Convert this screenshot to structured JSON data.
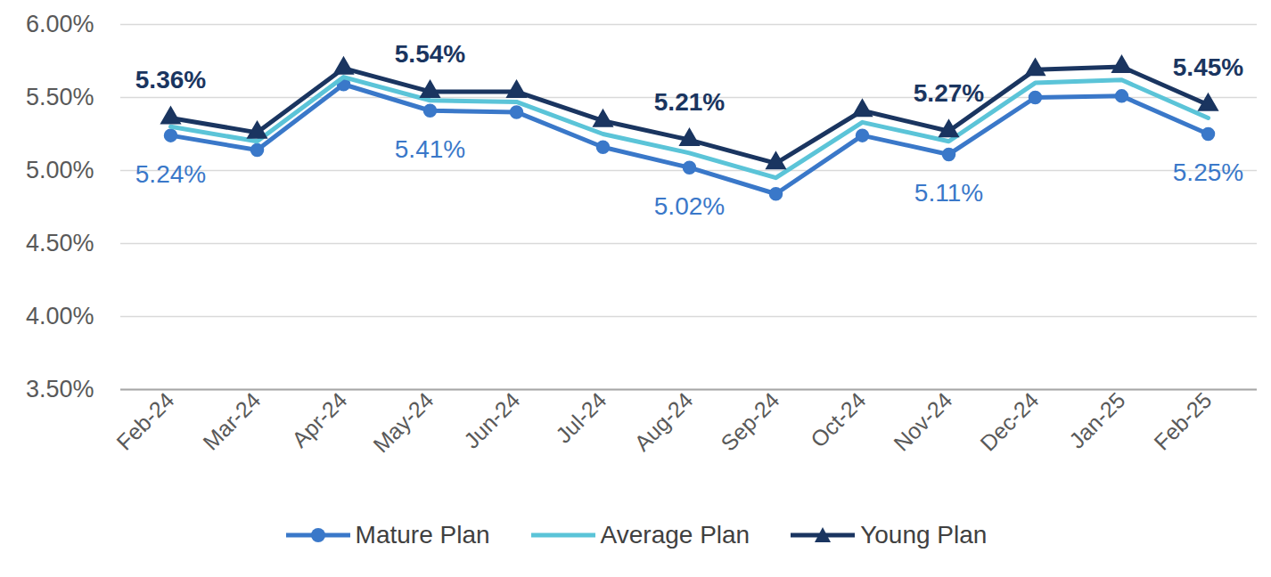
{
  "chart_data": {
    "type": "line",
    "categories": [
      "Feb-24",
      "Mar-24",
      "Apr-24",
      "May-24",
      "Jun-24",
      "Jul-24",
      "Aug-24",
      "Sep-24",
      "Oct-24",
      "Nov-24",
      "Dec-24",
      "Jan-25",
      "Feb-25"
    ],
    "series": [
      {
        "name": "Mature Plan",
        "color": "#3a78c9",
        "marker": "circle",
        "values": [
          5.24,
          5.14,
          5.59,
          5.41,
          5.4,
          5.16,
          5.02,
          4.84,
          5.24,
          5.11,
          5.5,
          5.51,
          5.25
        ],
        "value_labels": [
          "5.24%",
          null,
          null,
          "5.41%",
          null,
          null,
          "5.02%",
          null,
          null,
          "5.11%",
          null,
          null,
          "5.25%"
        ]
      },
      {
        "name": "Average Plan",
        "color": "#5bc4d8",
        "marker": "none",
        "values": [
          5.3,
          5.2,
          5.64,
          5.48,
          5.47,
          5.25,
          5.12,
          4.95,
          5.33,
          5.2,
          5.6,
          5.62,
          5.36
        ]
      },
      {
        "name": "Young Plan",
        "color": "#1a3560",
        "marker": "triangle",
        "values": [
          5.36,
          5.26,
          5.7,
          5.54,
          5.54,
          5.34,
          5.21,
          5.05,
          5.41,
          5.27,
          5.69,
          5.71,
          5.45
        ],
        "value_labels": [
          "5.36%",
          null,
          null,
          "5.54%",
          null,
          null,
          "5.21%",
          null,
          null,
          "5.27%",
          null,
          null,
          "5.45%"
        ]
      }
    ],
    "ylim": [
      3.5,
      6.0
    ],
    "yticks": [
      {
        "value": 3.5,
        "label": "3.50%"
      },
      {
        "value": 4.0,
        "label": "4.00%"
      },
      {
        "value": 4.5,
        "label": "4.50%"
      },
      {
        "value": 5.0,
        "label": "5.00%"
      },
      {
        "value": 5.5,
        "label": "5.50%"
      },
      {
        "value": 6.0,
        "label": "6.00%"
      }
    ],
    "grid": true,
    "data_labels": true,
    "legend": "bottom"
  }
}
